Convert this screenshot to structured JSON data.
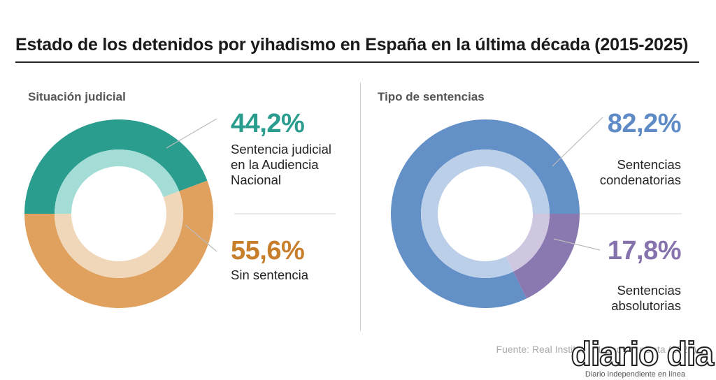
{
  "title": "Estado de los detenidos por yihadismo en España en la última década (2015-2025)",
  "source": "Fuente: Real Instituto Elcano - ☆oData (2025)",
  "brand": {
    "name": "diario dia",
    "tagline": "Diario independiente en línea"
  },
  "colors": {
    "teal": "#2a9d8f",
    "teal_light": "#a4dcd6",
    "orange": "#e0a15e",
    "orange_light": "#f1d7b9",
    "blue": "#6490c8",
    "blue_light": "#bccfe9",
    "purple": "#8a78b0",
    "purple_light": "#cfc6e0",
    "teal_text": "#2a9d8f",
    "orange_text": "#c77f2c",
    "blue_text": "#5e8bc6",
    "purple_text": "#8673ad"
  },
  "chart_data": [
    {
      "type": "pie",
      "title": "Situación judicial",
      "slices": [
        {
          "label": "Sentencia judicial en la Audiencia Nacional",
          "value": 44.2,
          "display": "44,2%"
        },
        {
          "label": "Sin sentencia",
          "value": 55.6,
          "display": "55,6%"
        }
      ]
    },
    {
      "type": "pie",
      "title": "Tipo de sentencias",
      "slices": [
        {
          "label": "Sentencias condenatorias",
          "value": 82.2,
          "display": "82,2%"
        },
        {
          "label": "Sentencias absolutorias",
          "value": 17.8,
          "display": "17,8%"
        }
      ]
    }
  ]
}
